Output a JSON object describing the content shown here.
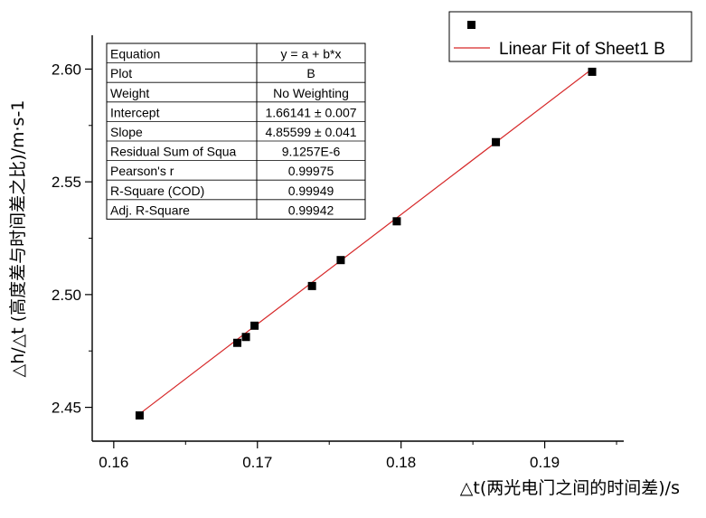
{
  "chart_data": {
    "type": "scatter",
    "xlabel": "△t(两光电门之间的时间差)/s",
    "ylabel": "△h/△t (高度差与时间差之比)/m·s-1",
    "xlim": [
      0.1585,
      0.1955
    ],
    "ylim": [
      2.435,
      2.615
    ],
    "x_ticks": [
      0.16,
      0.17,
      0.18,
      0.19
    ],
    "x_tick_labels": [
      "0.16",
      "0.17",
      "0.18",
      "0.19"
    ],
    "y_ticks": [
      2.45,
      2.5,
      2.55,
      2.6
    ],
    "y_tick_labels": [
      "2.45",
      "2.50",
      "2.55",
      "2.60"
    ],
    "grid": false,
    "series": [
      {
        "name": "B",
        "marker": "square",
        "color": "#000000",
        "points": [
          {
            "x": 0.1618,
            "y": 2.4464
          },
          {
            "x": 0.1686,
            "y": 2.4786
          },
          {
            "x": 0.1692,
            "y": 2.4812
          },
          {
            "x": 0.1698,
            "y": 2.4862
          },
          {
            "x": 0.1738,
            "y": 2.5038
          },
          {
            "x": 0.1758,
            "y": 2.5153
          },
          {
            "x": 0.1797,
            "y": 2.5325
          },
          {
            "x": 0.1866,
            "y": 2.5676
          },
          {
            "x": 0.1933,
            "y": 2.5988
          }
        ]
      }
    ],
    "fit_line": {
      "name": "Linear Fit of Sheet1 B",
      "color": "#d62728",
      "intercept": 1.66141,
      "slope": 4.85599,
      "x_range": [
        0.1618,
        0.1933
      ]
    },
    "legend": {
      "position": "top-right",
      "entries": [
        {
          "label": "",
          "kind": "marker"
        },
        {
          "label": "Linear Fit of Sheet1 B",
          "kind": "line"
        }
      ]
    },
    "stats_table": {
      "position": "top-left",
      "rows": [
        [
          "Equation",
          "y = a + b*x"
        ],
        [
          "Plot",
          "B"
        ],
        [
          "Weight",
          "No Weighting"
        ],
        [
          "Intercept",
          "1.66141 ± 0.007"
        ],
        [
          "Slope",
          "4.85599 ± 0.041"
        ],
        [
          "Residual Sum of Squa",
          "9.1257E-6"
        ],
        [
          "Pearson's r",
          "0.99975"
        ],
        [
          "R-Square (COD)",
          "0.99949"
        ],
        [
          "Adj. R-Square",
          "0.99942"
        ]
      ]
    }
  }
}
